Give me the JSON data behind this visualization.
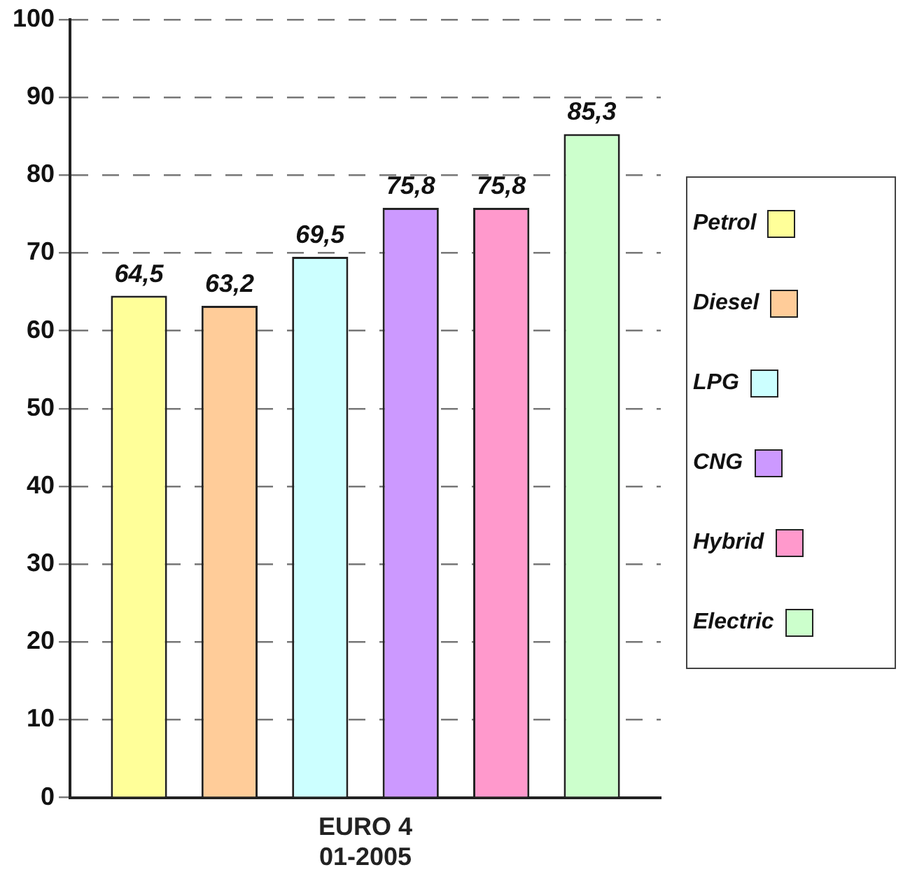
{
  "chart_data": {
    "type": "bar",
    "categories": [
      "EURO 4\n01-2005"
    ],
    "series": [
      {
        "name": "Petrol",
        "color": "#ffff99",
        "values": [
          64.5
        ],
        "value_labels": [
          "64,5"
        ]
      },
      {
        "name": "Diesel",
        "color": "#ffcc99",
        "values": [
          63.2
        ],
        "value_labels": [
          "63,2"
        ]
      },
      {
        "name": "LPG",
        "color": "#ccffff",
        "values": [
          69.5
        ],
        "value_labels": [
          "69,5"
        ]
      },
      {
        "name": "CNG",
        "color": "#cc99ff",
        "values": [
          75.8
        ],
        "value_labels": [
          "75,8"
        ]
      },
      {
        "name": "Hybrid",
        "color": "#ff99cc",
        "values": [
          75.8
        ],
        "value_labels": [
          "75,8"
        ]
      },
      {
        "name": "Electric",
        "color": "#ccffcc",
        "values": [
          85.3
        ],
        "value_labels": [
          "85,3"
        ]
      }
    ],
    "ylim": [
      0,
      100
    ],
    "yticks": [
      0,
      10,
      20,
      30,
      40,
      50,
      60,
      70,
      80,
      90,
      100
    ],
    "grid": "y",
    "legend": "right"
  }
}
